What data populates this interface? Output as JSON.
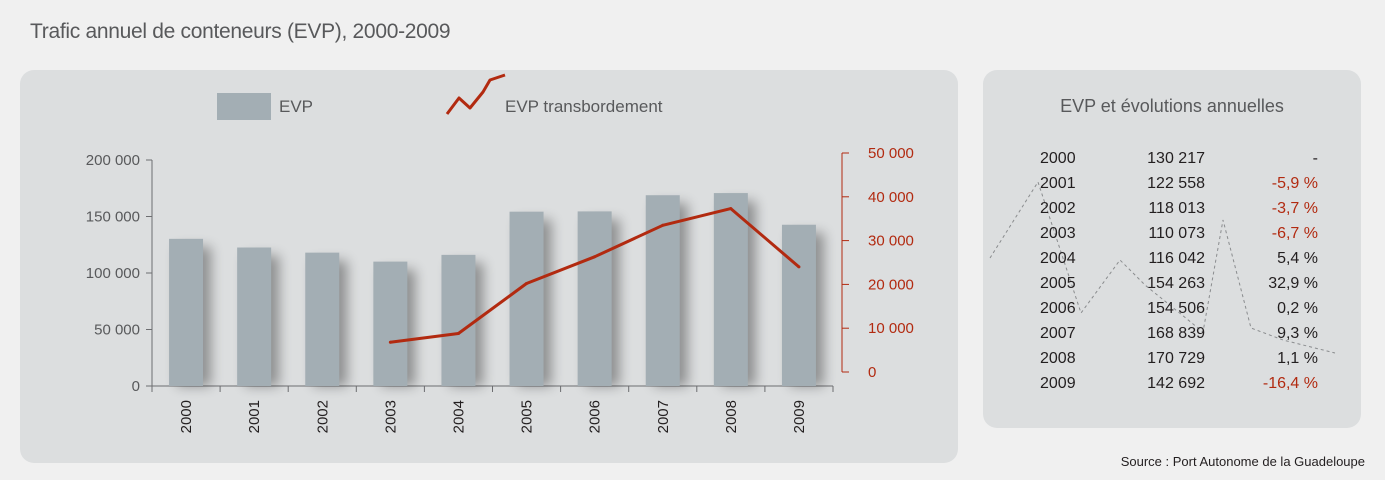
{
  "title": "Trafic annuel de conteneurs (EVP), 2000-2009",
  "source": "Source : Port Autonome de la Guadeloupe",
  "colors": {
    "bar": "#a3aeb4",
    "line": "#b22a10",
    "negative": "#b22a10",
    "panel": "#dcdedf",
    "text": "#231f20"
  },
  "chart_data": {
    "type": "bar",
    "categories": [
      "2000",
      "2001",
      "2002",
      "2003",
      "2004",
      "2005",
      "2006",
      "2007",
      "2008",
      "2009"
    ],
    "series": [
      {
        "name": "EVP",
        "type": "bar",
        "axis": "left",
        "values": [
          130217,
          122558,
          118013,
          110073,
          116042,
          154263,
          154506,
          168839,
          170729,
          142692
        ]
      },
      {
        "name": "EVP transbordement",
        "type": "line",
        "axis": "right",
        "values": [
          null,
          null,
          null,
          6800,
          8800,
          20200,
          26300,
          33500,
          37300,
          24000
        ]
      }
    ],
    "left_axis": {
      "ticks": [
        "200 000",
        "150 000",
        "100 000",
        "50 000",
        "0"
      ],
      "ylim": [
        0,
        200000
      ]
    },
    "right_axis": {
      "ticks": [
        "50 000",
        "40 000",
        "30 000",
        "20 000",
        "10 000",
        "0"
      ],
      "ylim": [
        0,
        50000
      ]
    },
    "legend": [
      "EVP",
      "EVP transbordement"
    ],
    "legend_position": "top",
    "grid": false
  },
  "table": {
    "title": "EVP et évolutions annuelles",
    "rows": [
      {
        "year": "2000",
        "value": "130 217",
        "evo": "-",
        "neg": false
      },
      {
        "year": "2001",
        "value": "122 558",
        "evo": "-5,9 %",
        "neg": true
      },
      {
        "year": "2002",
        "value": "118 013",
        "evo": "-3,7 %",
        "neg": true
      },
      {
        "year": "2003",
        "value": "110 073",
        "evo": "-6,7 %",
        "neg": true
      },
      {
        "year": "2004",
        "value": "116 042",
        "evo": "5,4 %",
        "neg": false
      },
      {
        "year": "2005",
        "value": "154 263",
        "evo": "32,9 %",
        "neg": false
      },
      {
        "year": "2006",
        "value": "154 506",
        "evo": "0,2 %",
        "neg": false
      },
      {
        "year": "2007",
        "value": "168 839",
        "evo": "9,3 %",
        "neg": false
      },
      {
        "year": "2008",
        "value": "170 729",
        "evo": "1,1 %",
        "neg": false
      },
      {
        "year": "2009",
        "value": "142 692",
        "evo": "-16,4 %",
        "neg": true
      }
    ]
  }
}
